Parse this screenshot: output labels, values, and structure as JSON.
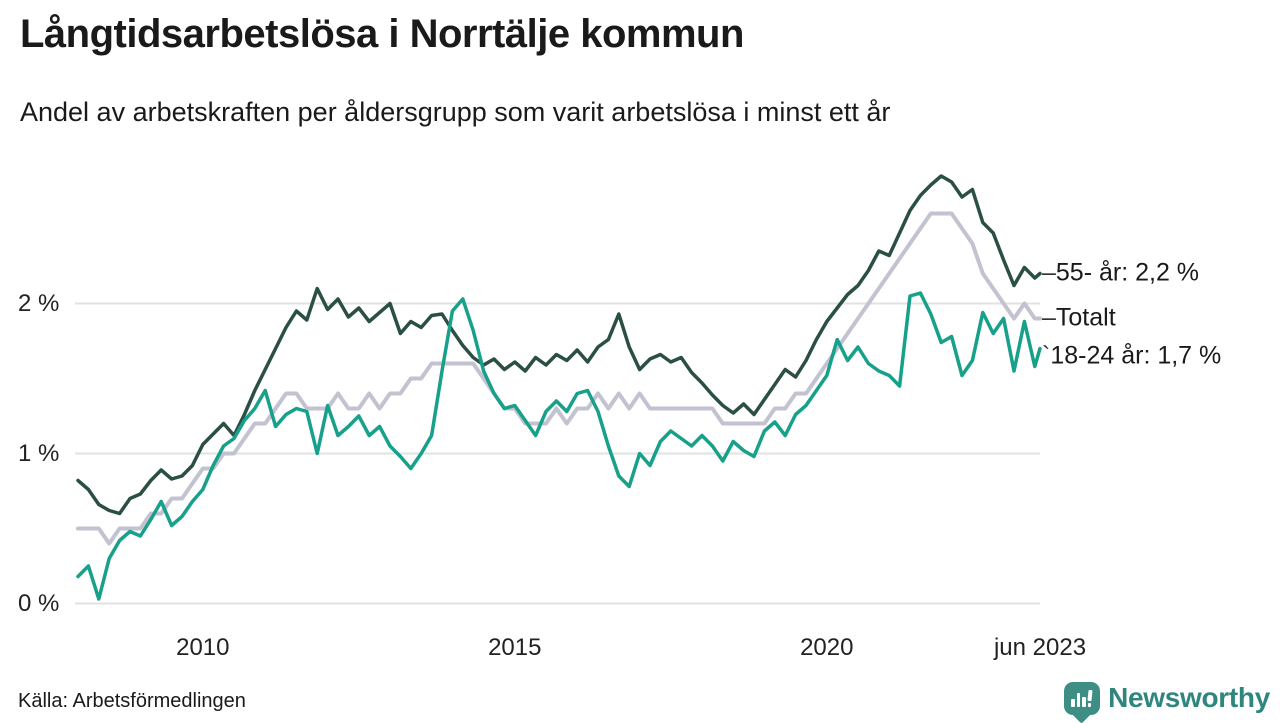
{
  "header": {
    "title": "Långtidsarbetslösa i Norrtälje kommun",
    "subtitle": "Andel av arbetskraften per åldersgrupp som varit arbetslösa i minst ett år"
  },
  "footer": {
    "source": "Källa: Arbetsförmedlingen",
    "brand_name": "Newsworthy",
    "brand_icon": "bar-chart-speech-bubble-icon",
    "brand_color": "#2f867e"
  },
  "legend": [
    {
      "dash": "–",
      "label": "55- år: 2,2 %",
      "series": "55plus"
    },
    {
      "dash": "–",
      "label": "Totalt",
      "series": "totalt"
    },
    {
      "dash": "`",
      "label": "18-24 år: 1,7 %",
      "series": "18-24"
    }
  ],
  "chart_data": {
    "type": "line",
    "title": "Långtidsarbetslösa i Norrtälje kommun",
    "subtitle": "Andel av arbetskraften per åldersgrupp som varit arbetslösa i minst ett år",
    "unit": "%",
    "x_description": "Monthly values Jan 2008 - Jun 2023 (series sampled every 2 months, last point Jun 2023)",
    "x_start_year": 2008.0,
    "x_step_months": 2,
    "x_end_year": 2023.417,
    "ylim": [
      0,
      3.1
    ],
    "grid": "horizontal",
    "legend_position": "right-of-line-ends",
    "y_ticks": [
      {
        "label": "0 %",
        "v": 0
      },
      {
        "label": "1 %",
        "v": 1
      },
      {
        "label": "2 %",
        "v": 2
      }
    ],
    "x_ticks": [
      {
        "label": "2010",
        "t": 2010
      },
      {
        "label": "2015",
        "t": 2015
      },
      {
        "label": "2020",
        "t": 2020
      },
      {
        "label": "jun 2023",
        "t": 2023.417
      }
    ],
    "series": [
      {
        "name": "55- år",
        "end_label": "55- år: 2,2 %",
        "last_value": 2.2,
        "color": "#2b4f44",
        "width": 3.5,
        "values": [
          0.82,
          0.76,
          0.66,
          0.62,
          0.6,
          0.7,
          0.73,
          0.82,
          0.89,
          0.83,
          0.85,
          0.92,
          1.06,
          1.13,
          1.2,
          1.12,
          1.26,
          1.42,
          1.56,
          1.7,
          1.84,
          1.95,
          1.89,
          2.1,
          1.96,
          2.03,
          1.91,
          1.97,
          1.88,
          1.94,
          2.0,
          1.8,
          1.88,
          1.84,
          1.92,
          1.93,
          1.82,
          1.72,
          1.64,
          1.59,
          1.63,
          1.56,
          1.61,
          1.55,
          1.64,
          1.59,
          1.66,
          1.62,
          1.69,
          1.61,
          1.71,
          1.76,
          1.93,
          1.71,
          1.56,
          1.63,
          1.66,
          1.61,
          1.64,
          1.54,
          1.47,
          1.39,
          1.32,
          1.27,
          1.33,
          1.26,
          1.36,
          1.46,
          1.56,
          1.51,
          1.62,
          1.76,
          1.88,
          1.97,
          2.06,
          2.12,
          2.22,
          2.35,
          2.32,
          2.47,
          2.62,
          2.72,
          2.79,
          2.85,
          2.81,
          2.71,
          2.76,
          2.54,
          2.47,
          2.29,
          2.12,
          2.24,
          2.17,
          2.2
        ]
      },
      {
        "name": "Totalt",
        "end_label": "Totalt",
        "last_value": 1.9,
        "color": "#c3c2d1",
        "width": 4,
        "values": [
          0.5,
          0.5,
          0.5,
          0.4,
          0.5,
          0.5,
          0.5,
          0.6,
          0.6,
          0.7,
          0.7,
          0.8,
          0.9,
          0.9,
          1.0,
          1.0,
          1.1,
          1.2,
          1.2,
          1.3,
          1.4,
          1.4,
          1.3,
          1.3,
          1.3,
          1.4,
          1.3,
          1.3,
          1.4,
          1.3,
          1.4,
          1.4,
          1.5,
          1.5,
          1.6,
          1.6,
          1.6,
          1.6,
          1.6,
          1.5,
          1.4,
          1.3,
          1.3,
          1.2,
          1.2,
          1.2,
          1.3,
          1.2,
          1.3,
          1.3,
          1.4,
          1.3,
          1.4,
          1.3,
          1.4,
          1.3,
          1.3,
          1.3,
          1.3,
          1.3,
          1.3,
          1.3,
          1.2,
          1.2,
          1.2,
          1.2,
          1.2,
          1.3,
          1.3,
          1.4,
          1.4,
          1.5,
          1.6,
          1.7,
          1.8,
          1.9,
          2.0,
          2.1,
          2.2,
          2.3,
          2.4,
          2.5,
          2.6,
          2.6,
          2.6,
          2.5,
          2.4,
          2.2,
          2.1,
          2.0,
          1.9,
          2.0,
          1.9,
          1.9
        ]
      },
      {
        "name": "18-24 år",
        "end_label": "18-24 år: 1,7 %",
        "last_value": 1.7,
        "color": "#17a08a",
        "width": 3.5,
        "values": [
          0.18,
          0.25,
          0.03,
          0.3,
          0.42,
          0.48,
          0.45,
          0.56,
          0.68,
          0.52,
          0.58,
          0.68,
          0.76,
          0.92,
          1.05,
          1.1,
          1.22,
          1.3,
          1.42,
          1.18,
          1.26,
          1.3,
          1.28,
          1.0,
          1.32,
          1.12,
          1.18,
          1.25,
          1.12,
          1.18,
          1.05,
          0.98,
          0.9,
          1.0,
          1.12,
          1.55,
          1.95,
          2.03,
          1.82,
          1.55,
          1.4,
          1.3,
          1.32,
          1.22,
          1.12,
          1.28,
          1.35,
          1.28,
          1.4,
          1.42,
          1.28,
          1.05,
          0.85,
          0.78,
          1.0,
          0.92,
          1.08,
          1.15,
          1.1,
          1.05,
          1.12,
          1.05,
          0.95,
          1.08,
          1.02,
          0.98,
          1.15,
          1.21,
          1.12,
          1.26,
          1.32,
          1.42,
          1.52,
          1.76,
          1.62,
          1.71,
          1.6,
          1.55,
          1.52,
          1.45,
          2.05,
          2.07,
          1.93,
          1.74,
          1.78,
          1.52,
          1.62,
          1.94,
          1.8,
          1.9,
          1.55,
          1.88,
          1.58,
          1.7
        ]
      }
    ],
    "grid_color": "#e2e2e2"
  }
}
